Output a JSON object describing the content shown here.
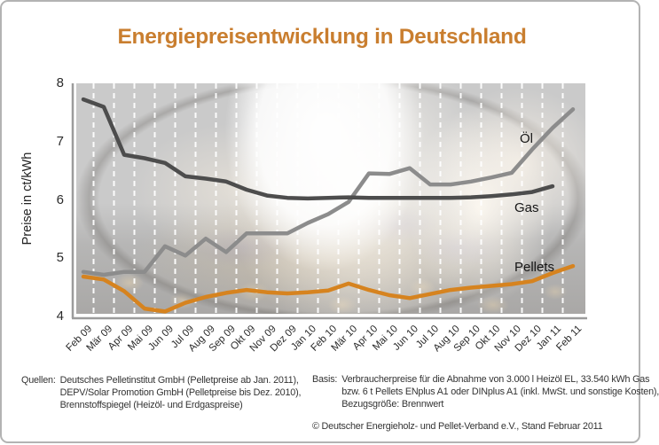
{
  "title": "Energiepreisentwicklung in Deutschland",
  "y_axis": {
    "label": "Preise in ct/kWh",
    "ticks": [
      "8",
      "7",
      "6",
      "5",
      "4"
    ]
  },
  "chart_data": {
    "type": "line",
    "x": [
      "Feb 09",
      "Mär 09",
      "Apr 09",
      "Mai 09",
      "Jun 09",
      "Jul 09",
      "Aug 09",
      "Sep 09",
      "Okt 09",
      "Nov 09",
      "Dez 09",
      "Jan 10",
      "Feb 10",
      "Mär 10",
      "Apr 10",
      "Mai 10",
      "Jun 10",
      "Jul 10",
      "Aug 10",
      "Sep 10",
      "Okt 10",
      "Nov 10",
      "Dez 10",
      "Jan 11",
      "Feb 11"
    ],
    "ylabel": "Preise in ct/kWh",
    "ylim": [
      4,
      8
    ],
    "grid": "vertical dashed white lines between months",
    "legend_position": "labels at line ends, right side",
    "series": [
      {
        "name": "Öl",
        "label_slug": "oel",
        "color": "#8c8c8c",
        "values": [
          4.78,
          4.73,
          4.78,
          4.78,
          5.22,
          5.06,
          5.35,
          5.12,
          5.44,
          5.44,
          5.44,
          5.62,
          5.77,
          5.98,
          6.47,
          6.46,
          6.56,
          6.28,
          6.28,
          6.33,
          6.4,
          6.48,
          6.88,
          7.25,
          7.57
        ]
      },
      {
        "name": "Gas",
        "label_slug": "gas",
        "color": "#4d4d4d",
        "values": [
          7.74,
          7.61,
          6.79,
          6.73,
          6.65,
          6.42,
          6.38,
          6.33,
          6.19,
          6.09,
          6.05,
          6.04,
          6.05,
          6.06,
          6.05,
          6.05,
          6.05,
          6.05,
          6.05,
          6.06,
          6.08,
          6.11,
          6.15,
          6.25,
          null
        ]
      },
      {
        "name": "Pellets",
        "label_slug": "pellets",
        "color": "#d6831f",
        "values": [
          4.7,
          4.65,
          4.45,
          4.15,
          4.1,
          4.25,
          4.35,
          4.42,
          4.47,
          4.43,
          4.41,
          4.43,
          4.46,
          4.58,
          4.47,
          4.38,
          4.33,
          4.4,
          4.47,
          4.51,
          4.54,
          4.57,
          4.62,
          4.76,
          4.88
        ]
      }
    ]
  },
  "footer": {
    "sources_label": "Quellen:",
    "sources": [
      "Deutsches Pelletinstitut GmbH (Pelletpreise ab Jan. 2011),",
      "DEPV/Solar Promotion GmbH (Pelletpreise bis Dez. 2010),",
      "Brennstoffspiegel (Heizöl- und Erdgaspreise)"
    ],
    "basis_label": "Basis:",
    "basis": [
      "Verbraucherpreise für die Abnahme von 3.000 l Heizöl EL, 33.540 kWh Gas",
      "bzw. 6 t Pellets ENplus A1 oder DINplus A1 (inkl. MwSt. und sonstige Kosten),",
      "Bezugsgröße: Brennwert"
    ],
    "copyright": "© Deutscher Energieholz- und Pellet-Verband e.V., Stand Februar 2011"
  },
  "colors": {
    "title": "#c97e2f",
    "axis": "#9b9b9b",
    "tick_text": "#2b2b2b",
    "plot_background": "#cacaca",
    "grid_dash": "#ffffff",
    "oil_line": "#8c8c8c",
    "gas_line": "#4d4d4d",
    "pellets_line": "#d6831f"
  }
}
